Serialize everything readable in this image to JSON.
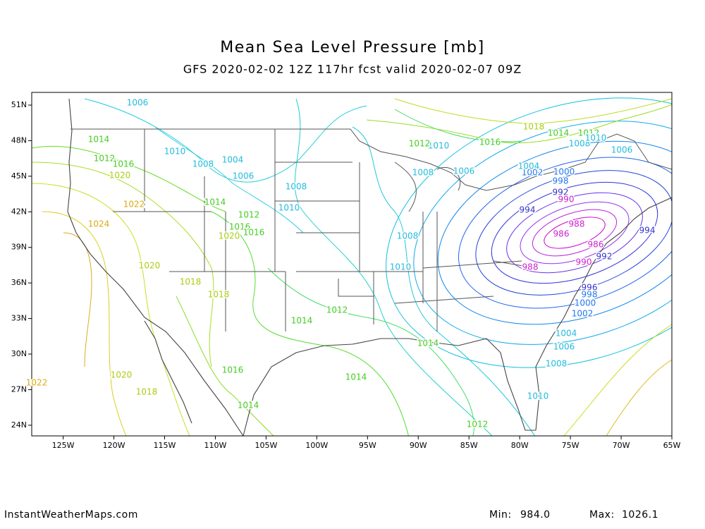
{
  "header": {
    "title": "Mean Sea Level Pressure [mb]",
    "subtitle": "GFS 2020-02-02 12Z 117hr fcst valid 2020-02-07 09Z"
  },
  "map": {
    "xlim": [
      -128.1,
      -65
    ],
    "ylim": [
      23.1,
      52.07
    ],
    "xticks": [
      {
        "value": -125,
        "label": "125W"
      },
      {
        "value": -120,
        "label": "120W"
      },
      {
        "value": -115,
        "label": "115W"
      },
      {
        "value": -110,
        "label": "110W"
      },
      {
        "value": -105,
        "label": "105W"
      },
      {
        "value": -100,
        "label": "100W"
      },
      {
        "value": -95,
        "label": "95W"
      },
      {
        "value": -90,
        "label": "90W"
      },
      {
        "value": -85,
        "label": "85W"
      },
      {
        "value": -80,
        "label": "80W"
      },
      {
        "value": -75,
        "label": "75W"
      },
      {
        "value": -70,
        "label": "70W"
      },
      {
        "value": -65,
        "label": "65W"
      }
    ],
    "yticks": [
      {
        "value": 51,
        "label": "51N"
      },
      {
        "value": 48,
        "label": "48N"
      },
      {
        "value": 45,
        "label": "45N"
      },
      {
        "value": 42,
        "label": "42N"
      },
      {
        "value": 39,
        "label": "39N"
      },
      {
        "value": 36,
        "label": "36N"
      },
      {
        "value": 33,
        "label": "33N"
      },
      {
        "value": 30,
        "label": "30N"
      },
      {
        "value": 27,
        "label": "27N"
      },
      {
        "value": 24,
        "label": "24N"
      }
    ],
    "contour_labels": [
      "1006",
      "1014",
      "1012",
      "1016",
      "1020",
      "1010",
      "1008",
      "1004",
      "1006",
      "1008",
      "1010",
      "1014",
      "1012",
      "1016",
      "1020",
      "1016",
      "1022",
      "1024",
      "1020",
      "1018",
      "1018",
      "1012",
      "1014",
      "1014",
      "1014",
      "1016",
      "1014",
      "1020",
      "1018",
      "1022",
      "1012",
      "1010",
      "1008",
      "1006",
      "1004",
      "1002",
      "1000",
      "998",
      "996",
      "990",
      "992",
      "994",
      "986",
      "986",
      "988",
      "988",
      "994",
      "992",
      "990",
      "998",
      "1000",
      "1002",
      "1004",
      "1006",
      "1008",
      "1010",
      "1012",
      "1016",
      "1018",
      "1014",
      "1012",
      "1008",
      "1010",
      "1006",
      "1008",
      "1010"
    ]
  },
  "footer": {
    "source": "InstantWeatherMaps.com",
    "min_label": "Min:",
    "min_value": "984.0",
    "max_label": "Max:",
    "max_value": "1026.1"
  }
}
